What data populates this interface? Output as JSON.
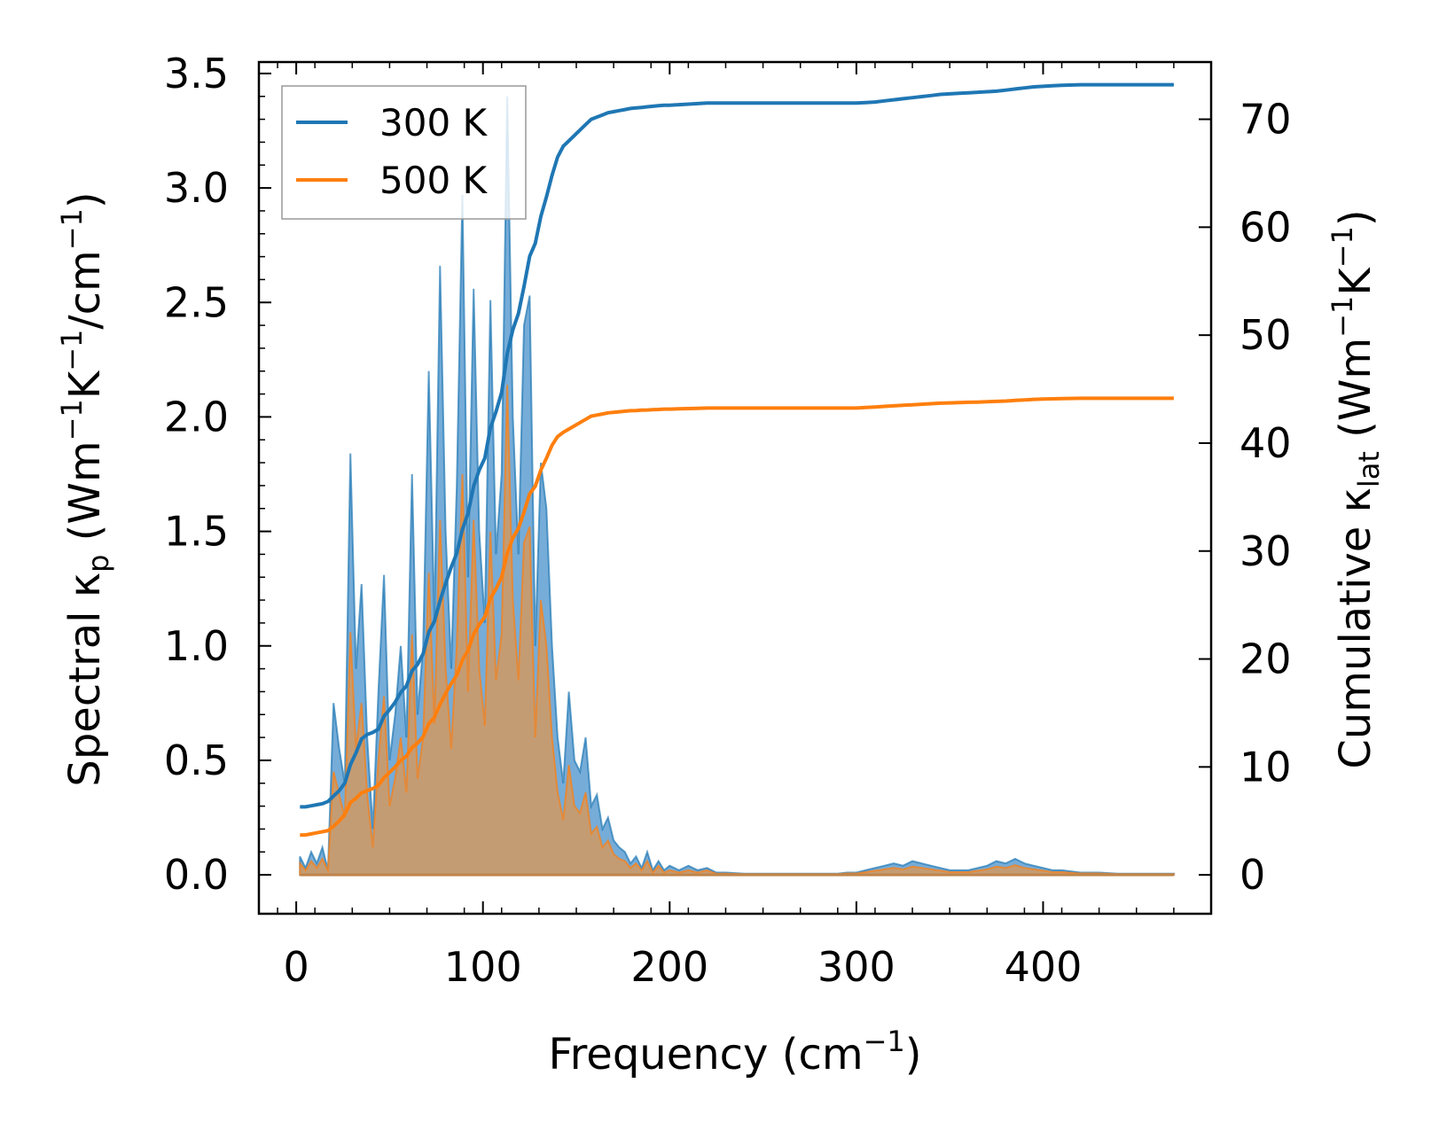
{
  "colors": {
    "series_300": "#1f77b4",
    "series_500": "#ff7f0e",
    "fill_300": "#6fa8d6",
    "fill_500": "#c89b6e"
  },
  "chart_data": {
    "type": "line",
    "xlabel": {
      "main": "Frequency (cm",
      "sup": "−1",
      "tail": ")"
    },
    "ylabel_left": {
      "a": "Spectral κ",
      "sub": "p",
      "b": " (Wm",
      "sup1": "−1",
      "c": "K",
      "sup2": "−1",
      "d": "/cm",
      "sup3": "−1",
      "e": ")"
    },
    "ylabel_right": {
      "a": "Cumulative κ",
      "sub": "lat",
      "b": " (Wm",
      "sup1": "−1",
      "c": "K",
      "sup2": "−1",
      "d": ")"
    },
    "xlim": [
      -20,
      490
    ],
    "ylim_left": [
      -0.17,
      3.55
    ],
    "ylim_right": [
      -3.6,
      75.3
    ],
    "x_ticks": [
      0,
      100,
      200,
      300,
      400
    ],
    "x_tick_labels": [
      "0",
      "100",
      "200",
      "300",
      "400"
    ],
    "y_left_ticks": [
      0.0,
      0.5,
      1.0,
      1.5,
      2.0,
      2.5,
      3.0,
      3.5
    ],
    "y_left_tick_labels": [
      "0.0",
      "0.5",
      "1.0",
      "1.5",
      "2.0",
      "2.5",
      "3.0",
      "3.5"
    ],
    "y_right_ticks": [
      0,
      10,
      20,
      30,
      40,
      50,
      60,
      70
    ],
    "y_right_tick_labels": [
      "0",
      "10",
      "20",
      "30",
      "40",
      "50",
      "60",
      "70"
    ],
    "legend": {
      "position": "upper-left",
      "entries": [
        "300 K",
        "500 K"
      ]
    },
    "spectral_x": [
      2,
      5,
      8,
      11,
      14,
      17,
      20,
      23,
      26,
      29,
      32,
      35,
      38,
      41,
      44,
      47,
      50,
      53,
      56,
      59,
      62,
      65,
      68,
      71,
      74,
      77,
      80,
      83,
      86,
      89,
      92,
      95,
      98,
      101,
      104,
      107,
      110,
      113,
      116,
      119,
      122,
      125,
      128,
      131,
      134,
      137,
      140,
      143,
      146,
      149,
      152,
      155,
      158,
      161,
      164,
      167,
      170,
      173,
      176,
      179,
      182,
      185,
      188,
      191,
      194,
      197,
      200,
      205,
      210,
      215,
      220,
      225,
      230,
      240,
      250,
      260,
      270,
      280,
      290,
      295,
      300,
      305,
      310,
      315,
      320,
      325,
      330,
      335,
      340,
      345,
      350,
      355,
      360,
      365,
      370,
      375,
      380,
      385,
      390,
      395,
      400,
      405,
      410,
      420,
      430,
      440,
      450,
      460,
      470
    ],
    "series": [
      {
        "name": "300 K",
        "spectral": [
          0.08,
          0.03,
          0.1,
          0.05,
          0.12,
          0.02,
          0.75,
          0.55,
          0.4,
          1.84,
          0.9,
          1.27,
          0.6,
          0.2,
          0.8,
          1.31,
          0.5,
          0.7,
          1.0,
          0.6,
          1.75,
          0.7,
          1.0,
          2.2,
          1.1,
          2.66,
          1.5,
          0.9,
          1.7,
          2.97,
          1.3,
          2.56,
          1.5,
          1.1,
          2.51,
          1.4,
          1.75,
          3.4,
          2.0,
          1.4,
          2.4,
          2.53,
          1.0,
          1.8,
          1.6,
          1.0,
          0.6,
          0.4,
          0.8,
          0.5,
          0.45,
          0.6,
          0.3,
          0.35,
          0.2,
          0.25,
          0.15,
          0.12,
          0.1,
          0.05,
          0.08,
          0.03,
          0.1,
          0.02,
          0.06,
          0.02,
          0.04,
          0.02,
          0.04,
          0.02,
          0.03,
          0.01,
          0.01,
          0.005,
          0.005,
          0.005,
          0.005,
          0.005,
          0.005,
          0.01,
          0.01,
          0.02,
          0.03,
          0.04,
          0.05,
          0.04,
          0.06,
          0.05,
          0.04,
          0.03,
          0.02,
          0.02,
          0.02,
          0.03,
          0.04,
          0.06,
          0.05,
          0.07,
          0.05,
          0.04,
          0.03,
          0.02,
          0.02,
          0.01,
          0.01,
          0.005,
          0.005,
          0.005,
          0.005
        ],
        "cumulative": [
          6.3,
          6.3,
          6.4,
          6.5,
          6.6,
          6.8,
          7.3,
          7.8,
          8.5,
          10.2,
          11.3,
          12.6,
          13.0,
          13.2,
          13.5,
          14.7,
          15.3,
          16.0,
          16.9,
          17.5,
          18.9,
          19.5,
          20.5,
          22.5,
          23.5,
          25.4,
          27.0,
          28.5,
          29.8,
          32.0,
          33.5,
          36.0,
          37.5,
          38.6,
          41.4,
          42.9,
          44.7,
          48.3,
          50.5,
          52.0,
          54.5,
          57.3,
          58.5,
          61.0,
          62.8,
          64.8,
          66.5,
          67.5,
          68.0,
          68.5,
          69.0,
          69.5,
          70.0,
          70.2,
          70.4,
          70.6,
          70.7,
          70.8,
          70.9,
          71.0,
          71.05,
          71.1,
          71.15,
          71.2,
          71.25,
          71.3,
          71.3,
          71.35,
          71.4,
          71.45,
          71.5,
          71.5,
          71.5,
          71.5,
          71.5,
          71.5,
          71.5,
          71.5,
          71.5,
          71.5,
          71.5,
          71.55,
          71.6,
          71.7,
          71.8,
          71.9,
          72.0,
          72.1,
          72.2,
          72.3,
          72.35,
          72.4,
          72.45,
          72.5,
          72.55,
          72.6,
          72.7,
          72.8,
          72.9,
          73.0,
          73.05,
          73.1,
          73.15,
          73.2,
          73.2,
          73.2,
          73.2,
          73.2,
          73.2
        ]
      },
      {
        "name": "500 K",
        "spectral": [
          0.05,
          0.02,
          0.06,
          0.03,
          0.07,
          0.02,
          0.45,
          0.35,
          0.25,
          1.06,
          0.55,
          0.75,
          0.35,
          0.12,
          0.5,
          0.78,
          0.3,
          0.42,
          0.6,
          0.36,
          1.05,
          0.42,
          0.6,
          1.32,
          0.66,
          1.55,
          0.9,
          0.55,
          1.0,
          1.75,
          0.8,
          1.55,
          0.9,
          0.65,
          1.5,
          0.85,
          1.05,
          2.14,
          1.2,
          0.85,
          1.45,
          1.52,
          0.6,
          1.2,
          1.0,
          0.6,
          0.36,
          0.24,
          0.48,
          0.3,
          0.27,
          0.36,
          0.18,
          0.21,
          0.12,
          0.15,
          0.09,
          0.07,
          0.06,
          0.03,
          0.05,
          0.02,
          0.06,
          0.01,
          0.04,
          0.01,
          0.02,
          0.01,
          0.02,
          0.01,
          0.02,
          0.005,
          0.005,
          0.003,
          0.003,
          0.003,
          0.003,
          0.003,
          0.003,
          0.006,
          0.006,
          0.012,
          0.018,
          0.024,
          0.03,
          0.024,
          0.036,
          0.03,
          0.024,
          0.018,
          0.012,
          0.012,
          0.012,
          0.018,
          0.024,
          0.036,
          0.03,
          0.042,
          0.03,
          0.024,
          0.018,
          0.012,
          0.012,
          0.006,
          0.006,
          0.003,
          0.003,
          0.003,
          0.003
        ],
        "cumulative": [
          3.7,
          3.7,
          3.8,
          3.9,
          4.0,
          4.1,
          4.5,
          5.0,
          5.6,
          6.7,
          7.1,
          7.6,
          7.8,
          8.0,
          8.3,
          9.0,
          9.5,
          10.0,
          10.6,
          11.0,
          11.8,
          12.2,
          12.8,
          14.0,
          14.6,
          15.8,
          16.8,
          17.7,
          18.5,
          19.9,
          20.8,
          22.3,
          23.2,
          23.9,
          25.6,
          26.5,
          27.6,
          29.8,
          31.2,
          32.1,
          33.6,
          35.3,
          36.0,
          37.5,
          38.6,
          39.8,
          40.6,
          41.0,
          41.3,
          41.6,
          41.9,
          42.2,
          42.5,
          42.6,
          42.7,
          42.8,
          42.85,
          42.9,
          42.95,
          43.0,
          43.02,
          43.05,
          43.07,
          43.1,
          43.12,
          43.15,
          43.15,
          43.17,
          43.2,
          43.22,
          43.25,
          43.25,
          43.25,
          43.25,
          43.25,
          43.25,
          43.25,
          43.25,
          43.25,
          43.25,
          43.25,
          43.3,
          43.35,
          43.4,
          43.45,
          43.5,
          43.55,
          43.6,
          43.65,
          43.7,
          43.72,
          43.75,
          43.78,
          43.8,
          43.83,
          43.86,
          43.9,
          43.95,
          44.0,
          44.05,
          44.08,
          44.1,
          44.12,
          44.15,
          44.15,
          44.15,
          44.15,
          44.15,
          44.15
        ]
      }
    ]
  }
}
